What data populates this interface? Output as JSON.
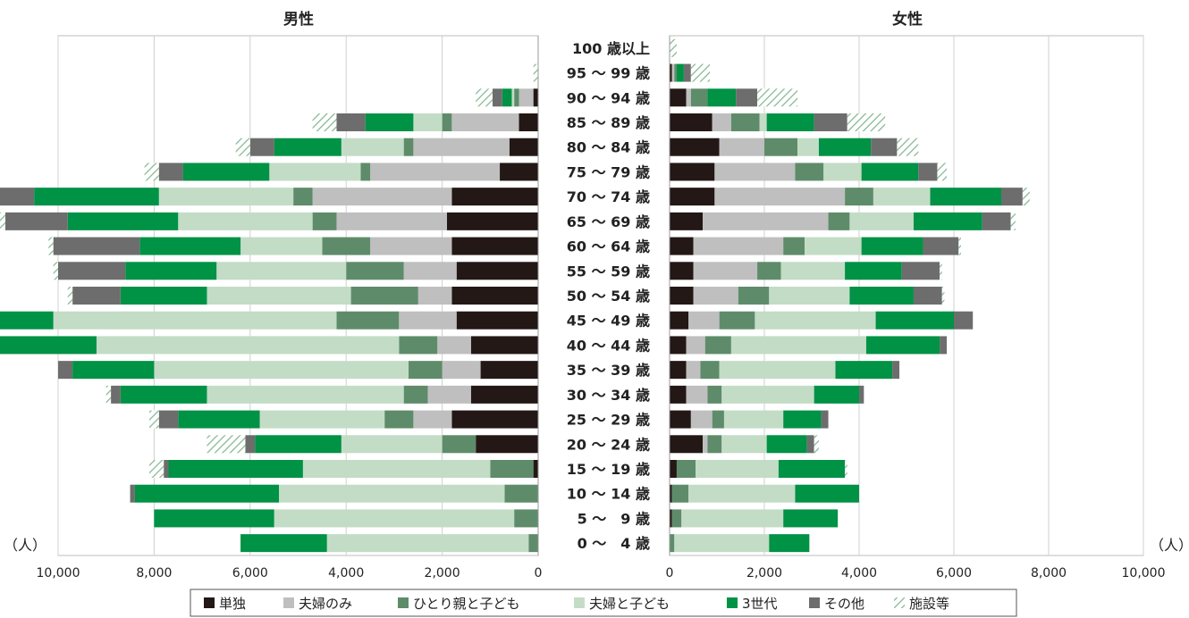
{
  "chart_data": {
    "type": "bar",
    "orientation": "horizontal-stacked-pyramid",
    "panels": {
      "left": "男性",
      "right": "女性"
    },
    "unit": "（人）",
    "xlim": [
      0,
      10000
    ],
    "xticks": [
      0,
      2000,
      4000,
      6000,
      8000,
      10000
    ],
    "xtick_labels": [
      "0",
      "2,000",
      "4,000",
      "6,000",
      "8,000",
      "10,000"
    ],
    "grid": true,
    "legend_position": "bottom",
    "categories": [
      "100 歳以上",
      "95 ～ 99 歳",
      "90 ～ 94 歳",
      "85 ～ 89 歳",
      "80 ～ 84 歳",
      "75 ～ 79 歳",
      "70 ～ 74 歳",
      "65 ～ 69 歳",
      "60 ～ 64 歳",
      "55 ～ 59 歳",
      "50 ～ 54 歳",
      "45 ～ 49 歳",
      "40 ～ 44 歳",
      "35 ～ 39 歳",
      "30 ～ 34 歳",
      "25 ～ 29 歳",
      "20 ～ 24 歳",
      "15 ～ 19 歳",
      "10 ～ 14 歳",
      "5 ～　9 歳",
      "0 ～　4 歳"
    ],
    "series": [
      {
        "name": "単独",
        "color": "#231815",
        "pattern": "solid"
      },
      {
        "name": "夫婦のみ",
        "color": "#bfbfbf",
        "pattern": "solid"
      },
      {
        "name": "ひとり親と子ども",
        "color": "#5e8c6a",
        "pattern": "solid"
      },
      {
        "name": "夫婦と子ども",
        "color": "#c3dcc6",
        "pattern": "solid"
      },
      {
        "name": "3世代",
        "color": "#009245",
        "pattern": "solid"
      },
      {
        "name": "その他",
        "color": "#6d6d6d",
        "pattern": "solid"
      },
      {
        "name": "施設等",
        "color": "#8ab898",
        "pattern": "hatch"
      }
    ],
    "male": [
      [
        0,
        0,
        0,
        0,
        0,
        0,
        0
      ],
      [
        0,
        0,
        0,
        0,
        0,
        0,
        100
      ],
      [
        100,
        300,
        100,
        50,
        200,
        200,
        350
      ],
      [
        400,
        1400,
        200,
        600,
        1000,
        600,
        500
      ],
      [
        600,
        2000,
        200,
        1300,
        1400,
        500,
        300
      ],
      [
        800,
        2700,
        200,
        1900,
        1800,
        500,
        300
      ],
      [
        1800,
        2900,
        400,
        2800,
        2600,
        1000,
        400
      ],
      [
        1900,
        2300,
        500,
        2800,
        2300,
        1300,
        300
      ],
      [
        1800,
        1700,
        1000,
        1700,
        2100,
        1800,
        100
      ],
      [
        1700,
        1100,
        1200,
        2700,
        1900,
        1400,
        100
      ],
      [
        1800,
        700,
        1400,
        3000,
        1800,
        1000,
        100
      ],
      [
        1700,
        1200,
        1300,
        5900,
        2700,
        600,
        100
      ],
      [
        1400,
        700,
        800,
        6300,
        2500,
        400,
        100
      ],
      [
        1200,
        800,
        700,
        5300,
        1700,
        300,
        0
      ],
      [
        1400,
        900,
        500,
        4100,
        1800,
        200,
        100
      ],
      [
        1800,
        800,
        600,
        2600,
        1700,
        400,
        200
      ],
      [
        1300,
        0,
        700,
        2100,
        1800,
        200,
        800
      ],
      [
        100,
        0,
        900,
        3900,
        2800,
        100,
        300
      ],
      [
        0,
        0,
        700,
        4700,
        3000,
        100,
        0
      ],
      [
        0,
        0,
        500,
        5000,
        2500,
        0,
        0
      ],
      [
        0,
        0,
        200,
        4200,
        1800,
        0,
        0
      ]
    ],
    "female": [
      [
        0,
        0,
        0,
        0,
        0,
        0,
        150
      ],
      [
        50,
        50,
        50,
        0,
        150,
        150,
        400
      ],
      [
        350,
        100,
        350,
        0,
        600,
        450,
        850
      ],
      [
        900,
        400,
        600,
        150,
        1000,
        700,
        800
      ],
      [
        1050,
        950,
        700,
        450,
        1100,
        550,
        450
      ],
      [
        950,
        1700,
        600,
        800,
        1200,
        400,
        200
      ],
      [
        950,
        2750,
        600,
        1200,
        1500,
        450,
        150
      ],
      [
        700,
        2650,
        450,
        1350,
        1450,
        600,
        100
      ],
      [
        500,
        1900,
        450,
        1200,
        1300,
        750,
        50
      ],
      [
        500,
        1350,
        500,
        1350,
        1200,
        800,
        50
      ],
      [
        500,
        950,
        650,
        1700,
        1350,
        600,
        50
      ],
      [
        400,
        650,
        750,
        2550,
        1650,
        400,
        0
      ],
      [
        350,
        400,
        550,
        2850,
        1550,
        150,
        0
      ],
      [
        350,
        300,
        400,
        2450,
        1200,
        150,
        0
      ],
      [
        350,
        450,
        300,
        1950,
        950,
        100,
        0
      ],
      [
        450,
        450,
        250,
        1250,
        800,
        150,
        0
      ],
      [
        700,
        100,
        300,
        950,
        850,
        150,
        100
      ],
      [
        150,
        0,
        400,
        1750,
        1400,
        0,
        50
      ],
      [
        50,
        0,
        350,
        2250,
        1350,
        0,
        0
      ],
      [
        50,
        0,
        200,
        2150,
        1150,
        0,
        0
      ],
      [
        0,
        0,
        100,
        2000,
        850,
        0,
        0
      ]
    ]
  }
}
